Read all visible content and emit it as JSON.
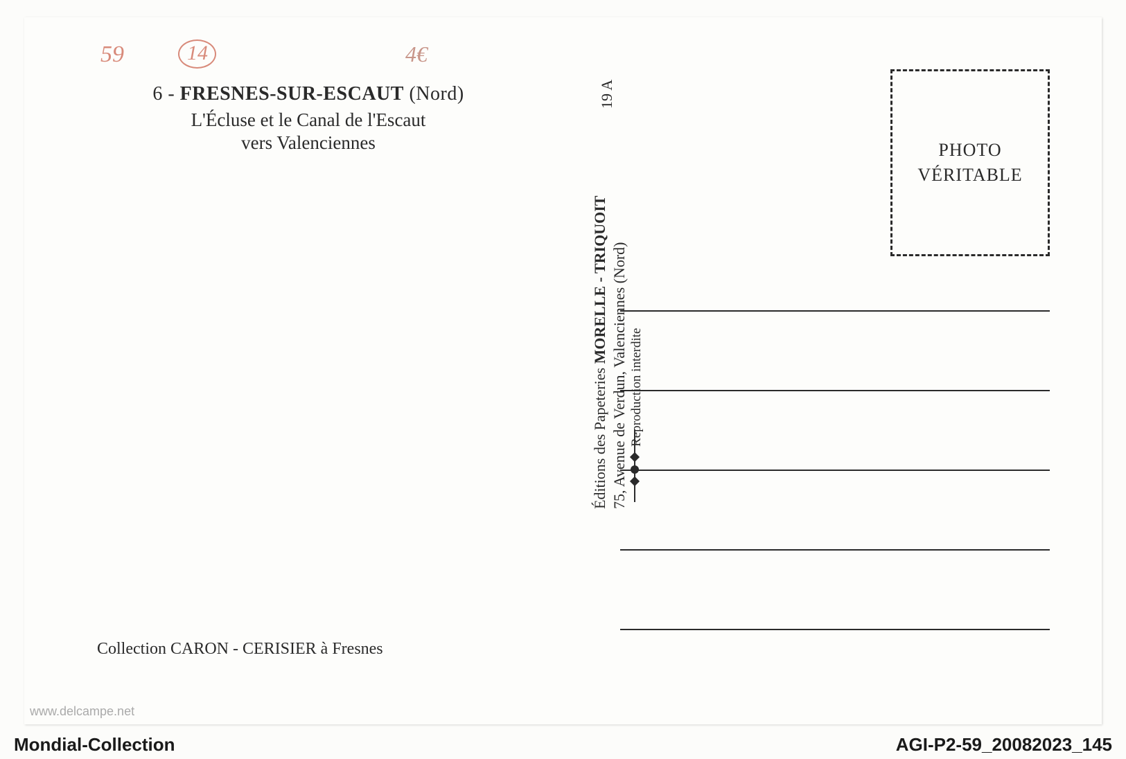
{
  "handwritten": {
    "topLeft": "59",
    "circled": "14",
    "price": "4€"
  },
  "title": {
    "number": "6",
    "separator": " - ",
    "location": "FRESNES-SUR-ESCAUT",
    "region": "(Nord)",
    "line2": "L'Écluse et le Canal de l'Escaut",
    "line3": "vers Valenciennes"
  },
  "collection": {
    "prefix": "Collection ",
    "name": "CARON - CERISIER",
    "suffix": " à Fresnes"
  },
  "editor": {
    "line1_prefix": "Éditions des Papeteries ",
    "line1_name": "MORELLE - TRIQUOIT",
    "line2": "75, Avenue de Verdun, Valenciennes (Nord)",
    "line3": "Reproduction interdite",
    "code": "19 A"
  },
  "stamp": {
    "line1": "PHOTO",
    "line2": "VÉRITABLE"
  },
  "watermark": "www.delcampe.net",
  "footer": {
    "left": "Mondial-Collection",
    "right": "AGI-P2-59_20082023_145"
  },
  "colors": {
    "background": "#fcfcfa",
    "cardBg": "#fdfdfb",
    "text": "#2a2a2a",
    "handwritten": "#d88a7a",
    "watermark": "#aaa"
  }
}
